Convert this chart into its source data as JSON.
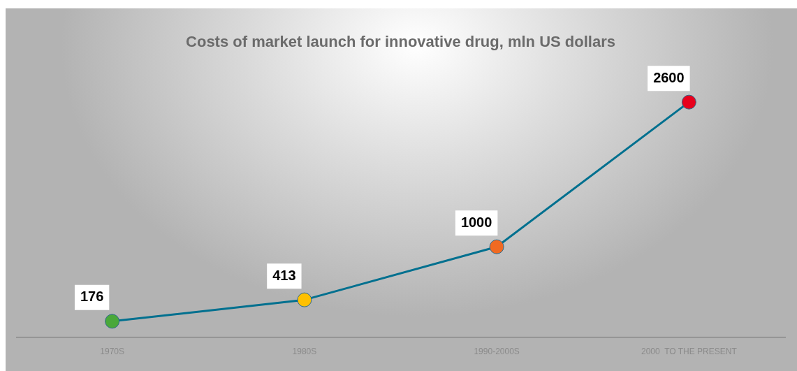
{
  "chart_data": {
    "type": "line",
    "title": "Costs of market launch for innovative drug, mln US dollars",
    "categories": [
      "1970S",
      "1980S",
      "1990-2000S",
      "2000  TO THE PRESENT"
    ],
    "series": [
      {
        "color": "#00708f",
        "colors": [
          "#4aa83a",
          "#ffc000",
          "#f06a22",
          "#e8001c"
        ],
        "values": [
          176,
          413,
          1000,
          2600
        ]
      }
    ],
    "data_labels": true,
    "marker": "circle",
    "line_style": "solid",
    "legend": false,
    "grid": false,
    "tick_labels": "x"
  }
}
